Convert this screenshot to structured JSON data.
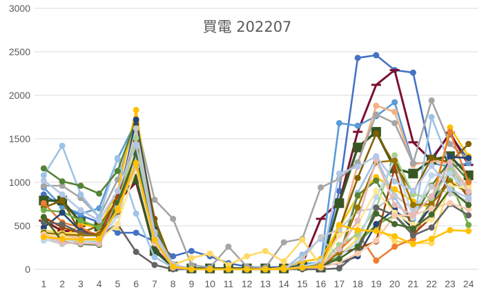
{
  "chart_data": {
    "type": "line",
    "title": "買電 202207",
    "xlabel": "",
    "ylabel": "",
    "x": [
      1,
      2,
      3,
      4,
      5,
      6,
      7,
      8,
      9,
      10,
      11,
      12,
      13,
      14,
      15,
      16,
      17,
      18,
      19,
      20,
      21,
      22,
      23,
      24
    ],
    "ylim": [
      0,
      3000
    ],
    "yticks": [
      0,
      500,
      1000,
      1500,
      2000,
      2500,
      3000
    ],
    "grid": true,
    "legend": "none",
    "series": [
      {
        "color": "#4472c4",
        "marker": "circle",
        "values": [
          860,
          720,
          620,
          540,
          420,
          420,
          320,
          150,
          210,
          150,
          70,
          30,
          20,
          30,
          40,
          60,
          900,
          2430,
          2460,
          2290,
          2260,
          1280,
          1550,
          1260
        ]
      },
      {
        "color": "#7b0f2e",
        "marker": "dash",
        "width": 3,
        "values": [
          560,
          440,
          440,
          400,
          780,
          1000,
          240,
          20,
          0,
          0,
          0,
          0,
          0,
          0,
          60,
          580,
          770,
          1580,
          2120,
          2290,
          1460,
          1250,
          1570,
          1200
        ]
      },
      {
        "color": "#5b9bd5",
        "marker": "circle",
        "values": [
          940,
          720,
          640,
          700,
          1270,
          1700,
          440,
          60,
          0,
          0,
          0,
          0,
          0,
          0,
          60,
          80,
          1680,
          1650,
          1760,
          1920,
          1220,
          1220,
          1180,
          1220
        ]
      },
      {
        "color": "#375623",
        "marker": "square",
        "width": 3.5,
        "values": [
          790,
          790,
          540,
          490,
          790,
          1040,
          210,
          30,
          10,
          10,
          10,
          10,
          10,
          10,
          40,
          20,
          760,
          1400,
          1580,
          1160,
          1100,
          1260,
          1300,
          1080
        ]
      },
      {
        "color": "#f4b183",
        "marker": "circle",
        "values": [
          420,
          380,
          360,
          300,
          820,
          1500,
          310,
          30,
          0,
          0,
          0,
          0,
          0,
          0,
          30,
          60,
          420,
          1200,
          1880,
          1810,
          1200,
          1250,
          1210,
          920
        ]
      },
      {
        "color": "#a5a5a5",
        "marker": "circle",
        "values": [
          960,
          960,
          820,
          600,
          1030,
          1700,
          800,
          580,
          50,
          20,
          260,
          30,
          20,
          310,
          350,
          940,
          1040,
          1230,
          1780,
          1680,
          1220,
          1940,
          1440,
          1260
        ]
      },
      {
        "color": "#ffc000",
        "marker": "circle",
        "values": [
          570,
          360,
          520,
          480,
          900,
          1830,
          420,
          40,
          0,
          0,
          0,
          0,
          0,
          20,
          90,
          120,
          480,
          840,
          1060,
          920,
          780,
          700,
          1630,
          1300
        ]
      },
      {
        "color": "#ffd966",
        "marker": "circle",
        "values": [
          450,
          420,
          410,
          410,
          480,
          1580,
          330,
          50,
          130,
          180,
          50,
          150,
          210,
          90,
          340,
          40,
          160,
          350,
          500,
          320,
          300,
          300,
          1000,
          960
        ]
      },
      {
        "color": "#9dc3e6",
        "marker": "circle",
        "values": [
          1080,
          1420,
          860,
          600,
          1280,
          640,
          140,
          20,
          0,
          0,
          0,
          0,
          0,
          0,
          170,
          350,
          150,
          880,
          1280,
          830,
          500,
          1750,
          1200,
          810
        ]
      },
      {
        "color": "#548235",
        "marker": "circle",
        "values": [
          1160,
          1010,
          960,
          870,
          1130,
          1720,
          530,
          30,
          0,
          0,
          0,
          0,
          0,
          0,
          30,
          40,
          130,
          850,
          1020,
          650,
          580,
          960,
          1250,
          1020
        ]
      },
      {
        "color": "#806000",
        "marker": "circle",
        "values": [
          710,
          790,
          420,
          500,
          780,
          1670,
          580,
          40,
          0,
          0,
          0,
          0,
          0,
          0,
          20,
          80,
          460,
          1050,
          1560,
          1200,
          880,
          1280,
          1230,
          1440
        ]
      },
      {
        "color": "#ed7d31",
        "marker": "circle",
        "values": [
          760,
          540,
          480,
          380,
          760,
          1290,
          380,
          40,
          0,
          0,
          0,
          0,
          0,
          0,
          30,
          60,
          220,
          420,
          100,
          260,
          350,
          780,
          1580,
          1000
        ]
      },
      {
        "color": "#70ad47",
        "marker": "circle",
        "values": [
          680,
          660,
          560,
          480,
          760,
          1490,
          390,
          30,
          0,
          0,
          0,
          0,
          0,
          0,
          20,
          40,
          160,
          300,
          510,
          620,
          420,
          800,
          1020,
          510
        ]
      },
      {
        "color": "#264478",
        "marker": "circle",
        "values": [
          480,
          650,
          440,
          380,
          720,
          1720,
          460,
          30,
          0,
          0,
          0,
          0,
          0,
          0,
          20,
          40,
          70,
          150,
          520,
          690,
          460,
          720,
          1290,
          1280
        ]
      },
      {
        "color": "#c9c9c9",
        "marker": "circle",
        "values": [
          350,
          290,
          320,
          320,
          760,
          1620,
          430,
          60,
          0,
          0,
          0,
          0,
          0,
          0,
          120,
          370,
          460,
          670,
          700,
          850,
          690,
          950,
          870,
          780
        ]
      },
      {
        "color": "#9e480e",
        "marker": "circle",
        "values": [
          600,
          480,
          420,
          400,
          840,
          1480,
          390,
          30,
          0,
          0,
          0,
          0,
          0,
          0,
          20,
          20,
          190,
          240,
          320,
          1170,
          400,
          600,
          1120,
          820
        ]
      },
      {
        "color": "#a9d18e",
        "marker": "circle",
        "values": [
          430,
          350,
          320,
          320,
          730,
          1510,
          360,
          20,
          0,
          0,
          0,
          0,
          0,
          0,
          20,
          60,
          280,
          400,
          700,
          1310,
          860,
          820,
          1140,
          930
        ]
      },
      {
        "color": "#bdd7ee",
        "marker": "circle",
        "values": [
          330,
          350,
          330,
          300,
          620,
          1310,
          360,
          30,
          0,
          0,
          0,
          0,
          0,
          0,
          30,
          90,
          160,
          300,
          830,
          1260,
          590,
          1080,
          1100,
          860
        ]
      },
      {
        "color": "#636363",
        "marker": "circle",
        "values": [
          540,
          520,
          420,
          380,
          520,
          200,
          50,
          0,
          0,
          0,
          0,
          0,
          0,
          0,
          0,
          0,
          10,
          190,
          710,
          620,
          390,
          480,
          750,
          620
        ]
      },
      {
        "color": "#997300",
        "marker": "circle",
        "values": [
          420,
          400,
          390,
          390,
          660,
          1360,
          330,
          40,
          0,
          0,
          0,
          0,
          0,
          0,
          20,
          50,
          190,
          710,
          1230,
          1250,
          740,
          750,
          1000,
          880
        ]
      },
      {
        "color": "#ffe699",
        "marker": "circle",
        "values": [
          400,
          380,
          340,
          340,
          520,
          1160,
          310,
          40,
          0,
          0,
          0,
          0,
          0,
          0,
          20,
          30,
          390,
          520,
          900,
          650,
          510,
          570,
          960,
          930
        ]
      },
      {
        "color": "#f8cbad",
        "marker": "circle",
        "values": [
          390,
          360,
          350,
          350,
          680,
          1230,
          300,
          30,
          0,
          0,
          0,
          0,
          0,
          0,
          20,
          20,
          80,
          180,
          330,
          620,
          620,
          700,
          760,
          690
        ]
      },
      {
        "color": "#43682b",
        "marker": "circle",
        "values": [
          600,
          320,
          290,
          280,
          760,
          1330,
          330,
          30,
          0,
          0,
          0,
          0,
          0,
          0,
          20,
          40,
          120,
          260,
          640,
          520,
          470,
          630,
          920,
          740
        ]
      },
      {
        "color": "#e6b9b8",
        "marker": "circle",
        "values": [
          380,
          310,
          300,
          290,
          700,
          1180,
          330,
          20,
          0,
          0,
          0,
          0,
          0,
          0,
          20,
          40,
          230,
          560,
          1260,
          740,
          620,
          840,
          1230,
          890
        ]
      },
      {
        "color": "#b4c7e7",
        "marker": "circle",
        "values": [
          1020,
          860,
          680,
          560,
          900,
          1430,
          400,
          40,
          0,
          0,
          0,
          0,
          0,
          0,
          20,
          30,
          1100,
          1180,
          1300,
          1010,
          900,
          1190,
          920,
          820
        ]
      },
      {
        "color": "#ffc000",
        "marker": "circle",
        "values": [
          370,
          350,
          340,
          350,
          690,
          1220,
          340,
          30,
          0,
          0,
          0,
          0,
          0,
          0,
          20,
          30,
          510,
          450,
          440,
          380,
          290,
          350,
          450,
          440
        ]
      }
    ]
  }
}
